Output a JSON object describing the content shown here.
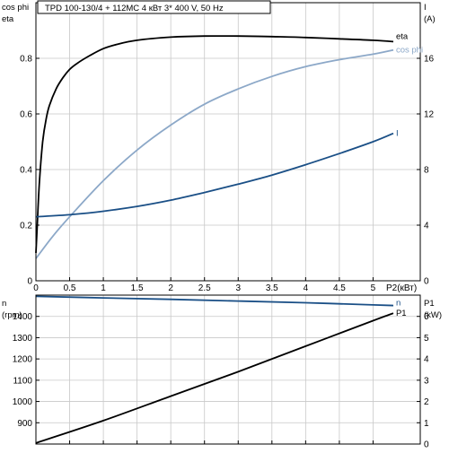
{
  "title": "TPD 100-130/4 + 112MC    4 кВт   3* 400 V, 50 Hz",
  "colors": {
    "background": "#ffffff",
    "frame": "#000000",
    "grid": "#c8c8c8",
    "eta": "#000000",
    "cos_phi": "#8ca8c8",
    "current": "#1a4f86",
    "speed": "#1a4f86",
    "p1": "#000000"
  },
  "chart_data": [
    {
      "type": "line",
      "title": "TPD 100-130/4 + 112MC    4 кВт   3* 400 V, 50 Hz",
      "xlabel": "P2(кВт)",
      "xlim": [
        0,
        5.7
      ],
      "xticks": [
        "0",
        "0.5",
        "1",
        "1.5",
        "2",
        "2.5",
        "3",
        "3.5",
        "4",
        "4.5",
        "5"
      ],
      "xtick_values": [
        0,
        0.5,
        1,
        1.5,
        2,
        2.5,
        3,
        3.5,
        4,
        4.5,
        5
      ],
      "ylabel_left": [
        "cos phi",
        "eta"
      ],
      "ylim_left": [
        0,
        1.0
      ],
      "yticks_left": [
        "0",
        "0.2",
        "0.4",
        "0.6",
        "0.8"
      ],
      "ytick_values_left": [
        0,
        0.2,
        0.4,
        0.6,
        0.8
      ],
      "ylabel_right": [
        "I",
        "(A)"
      ],
      "ylim_right": [
        0,
        20
      ],
      "yticks_right": [
        "0",
        "4",
        "8",
        "12",
        "16"
      ],
      "ytick_values_right": [
        0,
        4,
        8,
        12,
        16
      ],
      "grid": true,
      "series": [
        {
          "name": "eta",
          "axis": "left",
          "x": [
            0,
            0.02,
            0.05,
            0.1,
            0.15,
            0.2,
            0.3,
            0.4,
            0.5,
            0.6,
            0.8,
            1.0,
            1.2,
            1.5,
            2.0,
            2.5,
            3.0,
            3.5,
            4.0,
            4.5,
            5.0,
            5.3
          ],
          "y": [
            0.1,
            0.2,
            0.35,
            0.5,
            0.58,
            0.63,
            0.69,
            0.73,
            0.76,
            0.78,
            0.81,
            0.835,
            0.85,
            0.865,
            0.876,
            0.88,
            0.88,
            0.878,
            0.875,
            0.87,
            0.865,
            0.86
          ]
        },
        {
          "name": "cos phi",
          "axis": "left",
          "x": [
            0,
            0.25,
            0.5,
            1.0,
            1.5,
            2.0,
            2.5,
            3.0,
            3.5,
            4.0,
            4.5,
            5.0,
            5.3
          ],
          "y": [
            0.08,
            0.16,
            0.23,
            0.36,
            0.47,
            0.56,
            0.635,
            0.69,
            0.735,
            0.77,
            0.795,
            0.815,
            0.83
          ]
        },
        {
          "name": "I",
          "axis": "right",
          "x": [
            0,
            0.5,
            1.0,
            1.5,
            2.0,
            2.5,
            3.0,
            3.5,
            4.0,
            4.5,
            5.0,
            5.3
          ],
          "y": [
            4.6,
            4.75,
            5.0,
            5.35,
            5.8,
            6.35,
            6.95,
            7.6,
            8.35,
            9.15,
            10.0,
            10.6
          ]
        }
      ]
    },
    {
      "type": "line",
      "xlabel": "",
      "xlim": [
        0,
        5.7
      ],
      "ylabel_left": [
        "n",
        "(rpm)"
      ],
      "ylim_left": [
        800,
        1500
      ],
      "yticks_left": [
        "900",
        "1000",
        "1100",
        "1200",
        "1300",
        "1400"
      ],
      "ytick_values_left": [
        900,
        1000,
        1100,
        1200,
        1300,
        1400
      ],
      "ylabel_right": [
        "P1",
        "(kW)"
      ],
      "ylim_right": [
        0,
        7
      ],
      "yticks_right": [
        "0",
        "1",
        "2",
        "3",
        "4",
        "5",
        "6"
      ],
      "ytick_values_right": [
        0,
        1,
        2,
        3,
        4,
        5,
        6
      ],
      "grid": true,
      "series": [
        {
          "name": "n",
          "axis": "left",
          "x": [
            0,
            1,
            2,
            3,
            4,
            5,
            5.3
          ],
          "y": [
            1494,
            1487,
            1480,
            1472,
            1464,
            1454,
            1451
          ]
        },
        {
          "name": "P1",
          "axis": "right",
          "x": [
            0,
            1,
            2,
            3,
            4,
            5,
            5.3
          ],
          "y": [
            0.05,
            1.1,
            2.25,
            3.4,
            4.6,
            5.8,
            6.15
          ]
        }
      ]
    }
  ]
}
